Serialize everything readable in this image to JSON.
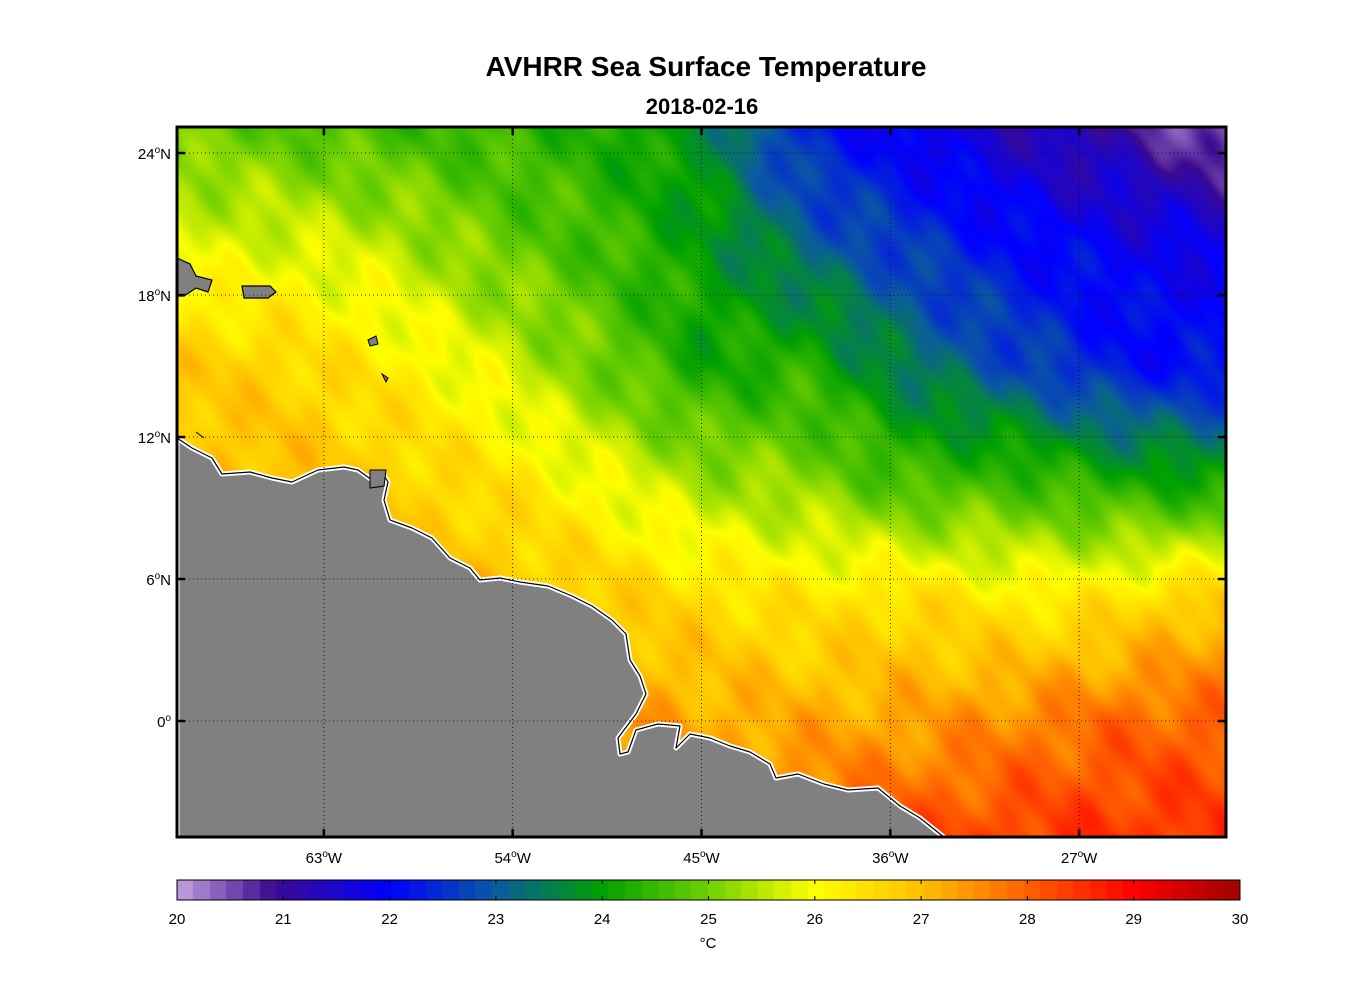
{
  "title": "AVHRR Sea Surface Temperature",
  "subtitle": "2018-02-16",
  "map": {
    "lon_range": [
      -70,
      -20
    ],
    "lat_range": [
      -4.9,
      25.1
    ],
    "lon_ticks": [
      {
        "value": -63,
        "label": "63",
        "unit": "W"
      },
      {
        "value": -54,
        "label": "54",
        "unit": "W"
      },
      {
        "value": -45,
        "label": "45",
        "unit": "W"
      },
      {
        "value": -36,
        "label": "36",
        "unit": "W"
      },
      {
        "value": -27,
        "label": "27",
        "unit": "W"
      }
    ],
    "lat_ticks": [
      {
        "value": 24,
        "label": "24",
        "unit": "N"
      },
      {
        "value": 18,
        "label": "18",
        "unit": "N"
      },
      {
        "value": 12,
        "label": "12",
        "unit": "N"
      },
      {
        "value": 6,
        "label": "6",
        "unit": "N"
      },
      {
        "value": 0,
        "label": "0",
        "unit": ""
      }
    ],
    "degree_symbol": "o",
    "grid": "dotted",
    "land_color": "#808080",
    "border_color": "#000000"
  },
  "colorbar": {
    "min": 20,
    "max": 30,
    "ticks": [
      "20",
      "21",
      "22",
      "23",
      "24",
      "25",
      "26",
      "27",
      "28",
      "29",
      "30"
    ],
    "unit_label": "°C",
    "orientation": "horizontal",
    "placement": "bottom",
    "color_stops": [
      {
        "t": 20.0,
        "color": "#c3a3e0"
      },
      {
        "t": 20.9,
        "color": "#3d0a8e"
      },
      {
        "t": 22.0,
        "color": "#0000ff"
      },
      {
        "t": 23.0,
        "color": "#0a5aa0"
      },
      {
        "t": 24.0,
        "color": "#00a000"
      },
      {
        "t": 25.0,
        "color": "#6fd000"
      },
      {
        "t": 26.0,
        "color": "#ffff00"
      },
      {
        "t": 27.0,
        "color": "#ffc000"
      },
      {
        "t": 28.0,
        "color": "#ff6000"
      },
      {
        "t": 29.0,
        "color": "#ff0000"
      },
      {
        "t": 30.0,
        "color": "#a00000"
      }
    ]
  },
  "chart_data": {
    "type": "heatmap",
    "title": "AVHRR Sea Surface Temperature",
    "subtitle": "2018-02-16",
    "value_unit": "°C",
    "value_range": [
      20,
      30
    ],
    "x_axis": "longitude",
    "y_axis": "latitude",
    "grid": true,
    "legend": "colorbar-bottom",
    "grid_lons": [
      -70,
      -65,
      -60,
      -55,
      -50,
      -45,
      -40,
      -35,
      -30,
      -25,
      -20
    ],
    "grid_lats": [
      25,
      20,
      15,
      10,
      5,
      0,
      -5
    ],
    "sst": [
      [
        25.0,
        24.8,
        24.6,
        24.5,
        24.3,
        23.8,
        22.3,
        21.8,
        21.4,
        21.0,
        20.3
      ],
      [
        25.8,
        25.8,
        25.6,
        25.0,
        24.6,
        24.0,
        23.2,
        22.6,
        22.1,
        21.9,
        21.8
      ],
      [
        26.8,
        26.7,
        26.3,
        25.8,
        25.0,
        24.2,
        24.3,
        23.4,
        22.8,
        22.2,
        22.1
      ],
      [
        27.0,
        27.0,
        26.8,
        26.5,
        26.0,
        25.4,
        25.2,
        24.6,
        24.6,
        24.3,
        24.1
      ],
      [
        27.0,
        27.0,
        27.0,
        27.0,
        26.8,
        26.6,
        26.4,
        26.6,
        26.3,
        26.5,
        27.0
      ],
      [
        27.0,
        27.0,
        27.0,
        27.0,
        27.5,
        27.2,
        27.2,
        27.3,
        27.6,
        27.9,
        28.0
      ],
      [
        27.0,
        27.0,
        27.0,
        27.0,
        27.5,
        27.7,
        28.0,
        28.2,
        28.4,
        28.5,
        28.5
      ]
    ]
  }
}
